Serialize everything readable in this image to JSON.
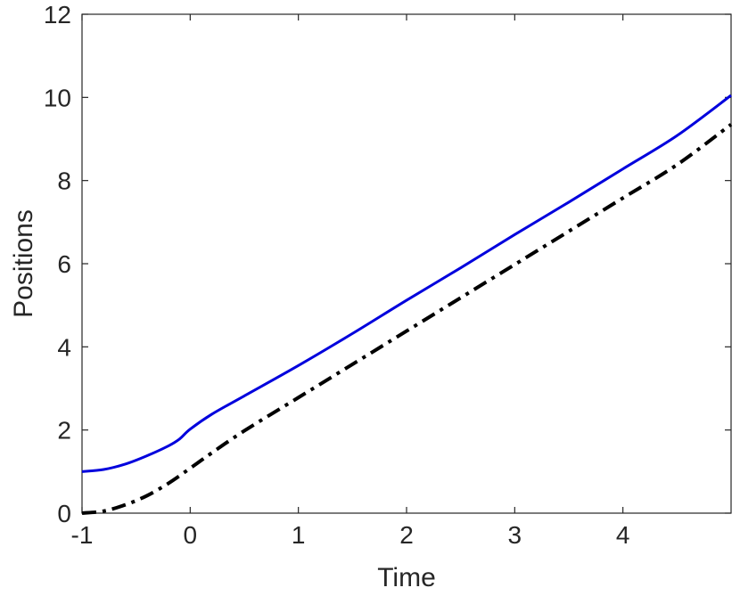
{
  "chart_data": {
    "type": "line",
    "title": "",
    "xlabel": "Time",
    "ylabel": "Positions",
    "xlim": [
      -1,
      5
    ],
    "ylim": [
      0,
      12
    ],
    "xticks": [
      -1,
      0,
      1,
      2,
      3,
      4
    ],
    "xtick_labels": [
      "-1",
      "0",
      "1",
      "2",
      "3",
      "4"
    ],
    "yticks": [
      0,
      2,
      4,
      6,
      8,
      10,
      12
    ],
    "ytick_labels": [
      "0",
      "2",
      "4",
      "6",
      "8",
      "10",
      "12"
    ],
    "grid": false,
    "legend": "none",
    "series": [
      {
        "color": "#0000dd",
        "style": "solid",
        "x": [
          -1.0,
          -0.8,
          -0.6,
          -0.4,
          -0.2,
          -0.1,
          0.0,
          0.2,
          0.5,
          1.0,
          1.5,
          2.0,
          2.5,
          3.0,
          3.5,
          4.0,
          4.5,
          5.0
        ],
        "y": [
          1.0,
          1.05,
          1.18,
          1.38,
          1.62,
          1.78,
          2.02,
          2.38,
          2.82,
          3.55,
          4.32,
          5.12,
          5.9,
          6.7,
          7.48,
          8.28,
          9.08,
          10.05
        ]
      },
      {
        "color": "#000000",
        "style": "dashdot",
        "x": [
          -1.0,
          -0.8,
          -0.6,
          -0.4,
          -0.2,
          0.0,
          0.2,
          0.5,
          1.0,
          1.5,
          2.0,
          2.5,
          3.0,
          3.5,
          4.0,
          4.5,
          5.0
        ],
        "y": [
          0.0,
          0.05,
          0.2,
          0.42,
          0.72,
          1.08,
          1.45,
          1.98,
          2.78,
          3.58,
          4.38,
          5.18,
          5.98,
          6.78,
          7.58,
          8.38,
          9.35
        ]
      }
    ]
  }
}
